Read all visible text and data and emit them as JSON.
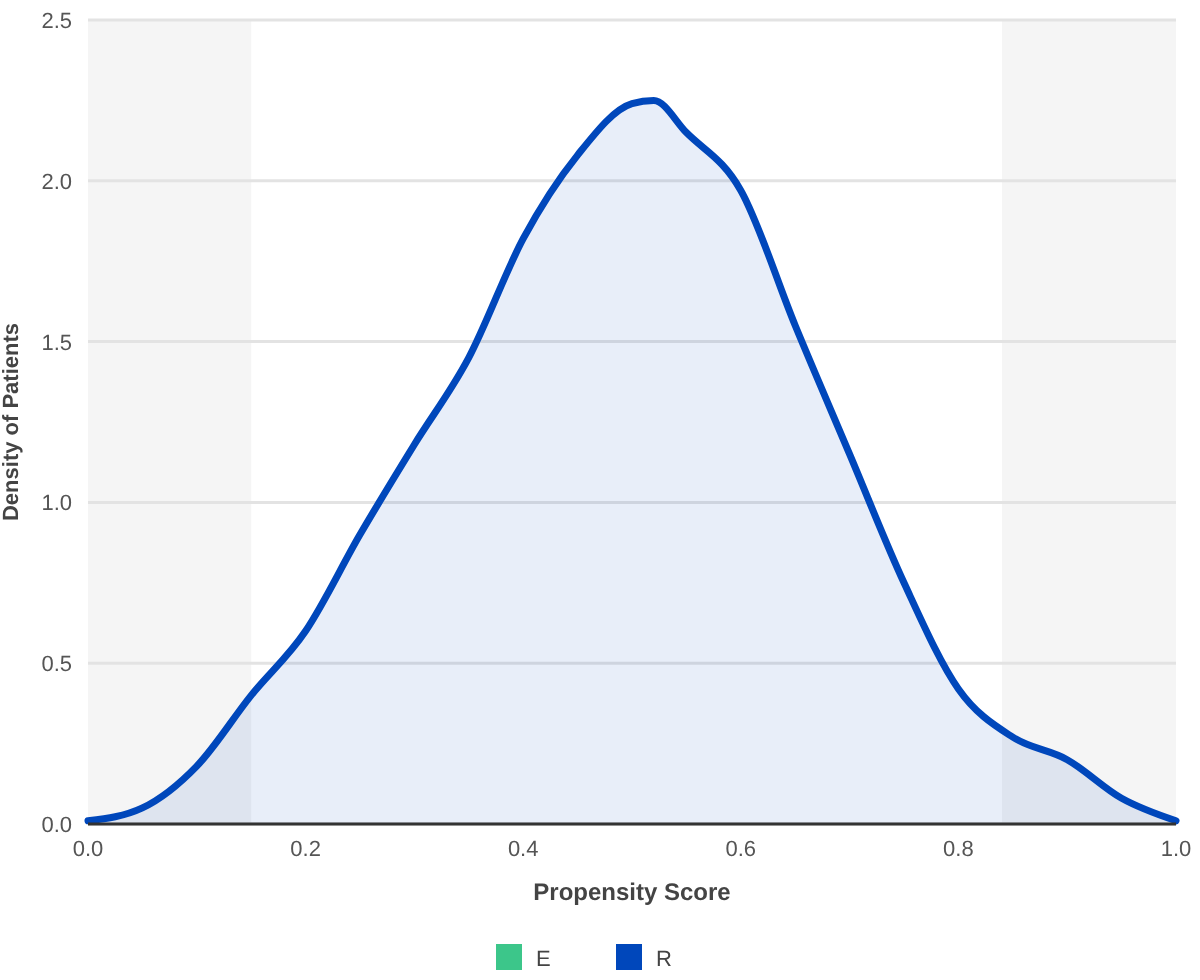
{
  "chart_data": {
    "type": "area",
    "xlabel": "Propensity Score",
    "ylabel": "Density of Patients",
    "x": [
      0,
      0.05,
      0.1,
      0.15,
      0.2,
      0.25,
      0.3,
      0.35,
      0.4,
      0.45,
      0.5,
      0.52,
      0.55,
      0.6,
      0.65,
      0.7,
      0.75,
      0.8,
      0.85,
      0.9,
      0.95,
      1.0
    ],
    "series": [
      {
        "name": "E",
        "color": "#3cc68a",
        "values": [
          null,
          null,
          null,
          null,
          null,
          null,
          null,
          null,
          null,
          null,
          null,
          null,
          null,
          null,
          null,
          null,
          null,
          null,
          null,
          null,
          null,
          null
        ]
      },
      {
        "name": "R",
        "color": "#0047bb",
        "values": [
          0.01,
          0.05,
          0.18,
          0.4,
          0.6,
          0.9,
          1.18,
          1.45,
          1.82,
          2.08,
          2.24,
          2.25,
          2.15,
          1.97,
          1.55,
          1.15,
          0.75,
          0.42,
          0.27,
          0.2,
          0.08,
          0.01
        ]
      }
    ],
    "xlim": [
      0,
      1
    ],
    "xticks": [
      {
        "value": 0,
        "label": "0.0"
      },
      0.2,
      0.4,
      0.6,
      0.8,
      {
        "value": 1,
        "label": "1.0"
      }
    ],
    "ylim": [
      0,
      2.5
    ],
    "yticks": [
      {
        "value": 0,
        "label": "0.0"
      },
      0.5,
      {
        "value": 1,
        "label": "1.0"
      },
      1.5,
      {
        "value": 2,
        "label": "2.0"
      },
      2.5
    ],
    "bands": [
      {
        "axis": "x",
        "from": 0,
        "to": 0.15,
        "color": "#f5f5f5"
      },
      {
        "axis": "x",
        "from": 0.84,
        "to": 1,
        "color": "#f5f5f5"
      }
    ],
    "grid": "y",
    "legend": "bottom",
    "marker": "none",
    "line_style": "solid"
  }
}
